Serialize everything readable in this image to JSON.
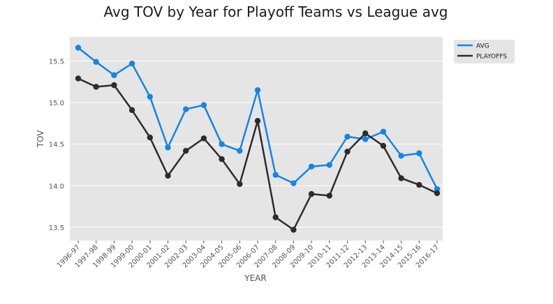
{
  "chart_data": {
    "type": "line",
    "title": "Avg TOV by Year for Playoff Teams vs League avg",
    "xlabel": "YEAR",
    "ylabel": "TOV",
    "categories": [
      "1996-97",
      "1997-98",
      "1998-99",
      "1999-00",
      "2000-01",
      "2001-02",
      "2002-03",
      "2003-04",
      "2004-05",
      "2005-06",
      "2006-07",
      "2007-08",
      "2008-09",
      "2009-10",
      "2010-11",
      "2011-12",
      "2012-13",
      "2013-14",
      "2014-15",
      "2015-16",
      "2016-17"
    ],
    "yticks": [
      "13.5",
      "14.0",
      "14.5",
      "15.0",
      "15.5"
    ],
    "ylim": [
      13.34,
      15.79
    ],
    "grid": true,
    "legend_position": "outside-top-right",
    "series": [
      {
        "name": "AVG",
        "color": "#1485e3",
        "values": [
          15.66,
          15.49,
          15.33,
          15.47,
          15.07,
          14.46,
          14.92,
          14.97,
          14.5,
          14.42,
          15.15,
          14.13,
          14.03,
          14.23,
          14.25,
          14.59,
          14.56,
          14.65,
          14.36,
          14.39,
          13.96
        ]
      },
      {
        "name": "PLAYOFFS",
        "color": "#2c2c2c",
        "values": [
          15.29,
          15.19,
          15.21,
          14.91,
          14.58,
          14.12,
          14.42,
          14.57,
          14.32,
          14.02,
          14.78,
          13.62,
          13.47,
          13.9,
          13.88,
          14.41,
          14.63,
          14.48,
          14.09,
          14.01,
          13.91
        ]
      }
    ]
  }
}
